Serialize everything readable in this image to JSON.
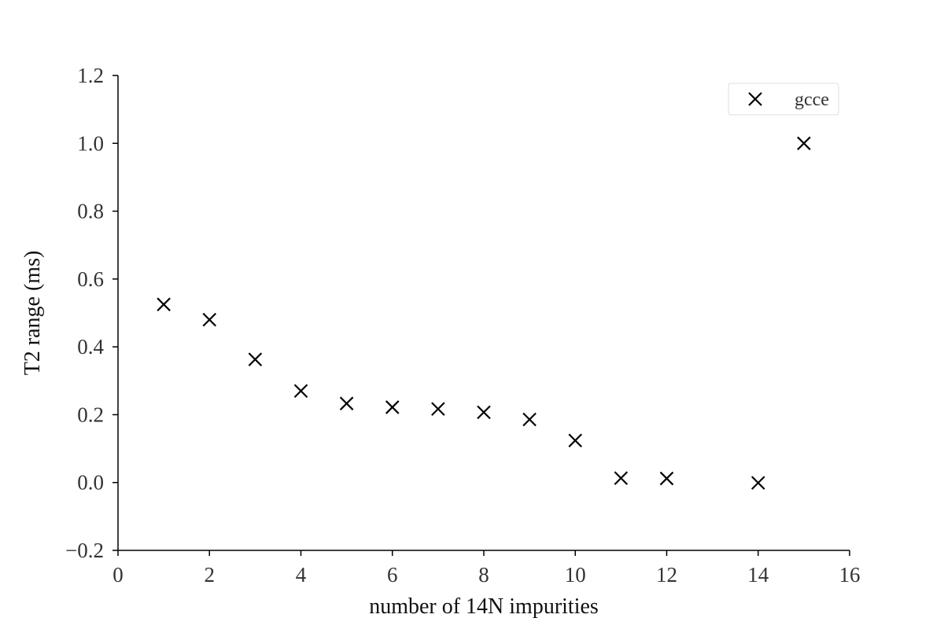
{
  "chart_data": {
    "type": "scatter",
    "title": "",
    "xlabel": "number of 14N impurities",
    "ylabel": "T2 range (ms)",
    "xlim": [
      0,
      16
    ],
    "ylim": [
      -0.2,
      1.2
    ],
    "xticks": [
      0,
      2,
      4,
      6,
      8,
      10,
      12,
      14,
      16
    ],
    "xtick_labels": [
      "0",
      "2",
      "4",
      "6",
      "8",
      "10",
      "12",
      "14",
      "16"
    ],
    "yticks": [
      -0.2,
      0.0,
      0.2,
      0.4,
      0.6,
      0.8,
      1.0,
      1.2
    ],
    "ytick_labels": [
      "−0.2",
      "0.0",
      "0.2",
      "0.4",
      "0.6",
      "0.8",
      "1.0",
      "1.2"
    ],
    "grid": false,
    "legend_position": "top-right",
    "series": [
      {
        "name": "gcce",
        "marker": "x",
        "color": "#000000",
        "x": [
          1,
          2,
          3,
          4,
          5,
          6,
          7,
          8,
          9,
          10,
          11,
          12,
          14,
          15
        ],
        "y": [
          0.525,
          0.48,
          0.363,
          0.27,
          0.233,
          0.222,
          0.217,
          0.207,
          0.186,
          0.124,
          0.013,
          0.012,
          -0.001,
          1.0
        ]
      }
    ]
  }
}
